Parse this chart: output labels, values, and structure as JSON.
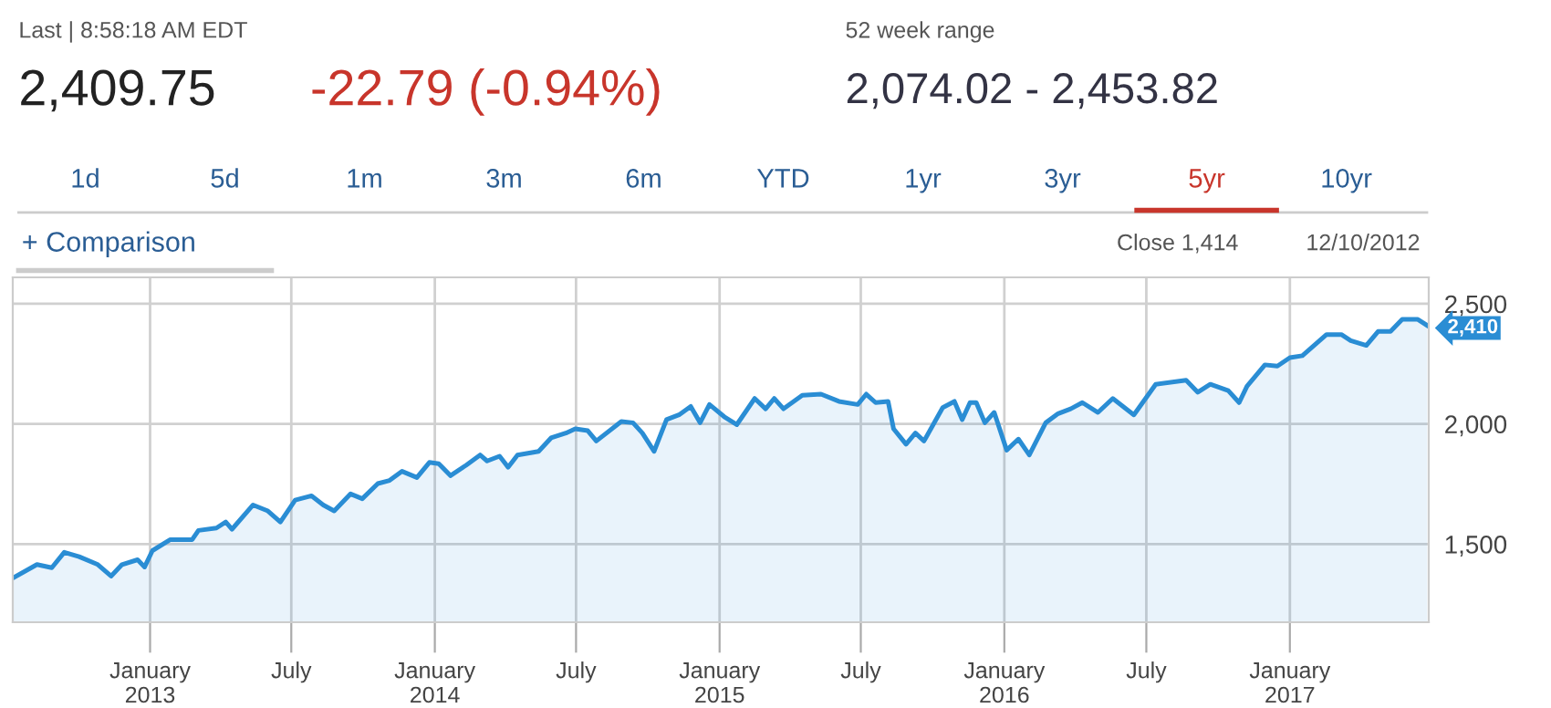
{
  "chart_data": {
    "type": "area",
    "annotations": [
      "Last | 8:58:18 AM EDT",
      "2,409.75",
      "-22.79 (-0.94%)",
      "52 week range",
      "2,074.02 - 2,453.82",
      "1d",
      "5d",
      "1m",
      "3m",
      "6m",
      "YTD",
      "1yr",
      "3yr",
      "5yr",
      "10yr",
      "+ Comparison",
      "Close 1,414",
      "12/10/2012",
      {
        "text": "2,410",
        "x": "2017-06-26",
        "y": 2410
      }
    ],
    "series": [
      {
        "color": "#2a8dd4",
        "x": [
          "2012-07-09",
          "2012-08-09",
          "2012-08-28",
          "2012-09-13",
          "2012-10-02",
          "2012-10-26",
          "2012-11-12",
          "2012-11-26",
          "2012-12-16",
          "2012-12-25",
          "2013-01-04",
          "2013-01-27",
          "2013-02-24",
          "2013-03-04",
          "2013-03-27",
          "2013-04-08",
          "2013-04-16",
          "2013-05-13",
          "2013-06-01",
          "2013-06-17",
          "2013-07-06",
          "2013-07-27",
          "2013-08-11",
          "2013-08-25",
          "2013-09-15",
          "2013-09-30",
          "2013-10-20",
          "2013-11-04",
          "2013-11-20",
          "2013-12-09",
          "2013-12-25",
          "2014-01-06",
          "2014-01-21",
          "2014-02-10",
          "2014-02-28",
          "2014-03-09",
          "2014-03-25",
          "2014-04-05",
          "2014-04-17",
          "2014-05-14",
          "2014-05-30",
          "2014-06-18",
          "2014-06-30",
          "2014-07-16",
          "2014-07-27",
          "2014-08-28",
          "2014-09-12",
          "2014-09-24",
          "2014-10-09",
          "2014-10-25",
          "2014-11-10",
          "2014-11-25",
          "2014-12-07",
          "2014-12-19",
          "2015-01-07",
          "2015-01-23",
          "2015-02-15",
          "2015-03-01",
          "2015-03-12",
          "2015-03-24",
          "2015-04-17",
          "2015-05-11",
          "2015-06-03",
          "2015-06-27",
          "2015-07-08",
          "2015-07-20",
          "2015-08-05",
          "2015-08-12",
          "2015-08-28",
          "2015-09-09",
          "2015-09-20",
          "2015-10-14",
          "2015-10-29",
          "2015-11-08",
          "2015-11-18",
          "2015-11-26",
          "2015-12-07",
          "2015-12-19",
          "2016-01-04",
          "2016-01-19",
          "2016-02-02",
          "2016-02-23",
          "2016-03-10",
          "2016-03-26",
          "2016-04-10",
          "2016-04-30",
          "2016-05-19",
          "2016-06-15",
          "2016-07-13",
          "2016-08-21",
          "2016-09-05",
          "2016-09-21",
          "2016-10-14",
          "2016-10-28",
          "2016-11-07",
          "2016-11-30",
          "2016-12-16",
          "2017-01-01",
          "2017-01-17",
          "2017-02-17",
          "2017-03-08",
          "2017-03-20",
          "2017-04-09",
          "2017-04-24",
          "2017-05-10",
          "2017-05-25",
          "2017-06-14",
          "2017-06-26"
        ],
        "values": [
          1359,
          1415,
          1402,
          1466,
          1448,
          1415,
          1367,
          1415,
          1435,
          1405,
          1473,
          1519,
          1519,
          1557,
          1567,
          1592,
          1562,
          1663,
          1638,
          1592,
          1683,
          1701,
          1663,
          1638,
          1709,
          1689,
          1752,
          1765,
          1803,
          1777,
          1840,
          1835,
          1785,
          1828,
          1871,
          1846,
          1866,
          1820,
          1871,
          1886,
          1942,
          1962,
          1980,
          1972,
          1929,
          2010,
          2005,
          1962,
          1886,
          2018,
          2038,
          2073,
          2005,
          2081,
          2030,
          1997,
          2106,
          2063,
          2106,
          2063,
          2119,
          2124,
          2094,
          2081,
          2124,
          2089,
          2094,
          1980,
          1916,
          1962,
          1929,
          2068,
          2094,
          2018,
          2089,
          2089,
          2005,
          2048,
          1891,
          1937,
          1871,
          2005,
          2043,
          2063,
          2089,
          2048,
          2106,
          2038,
          2165,
          2182,
          2132,
          2165,
          2139,
          2089,
          2157,
          2246,
          2241,
          2276,
          2284,
          2372,
          2372,
          2347,
          2327,
          2385,
          2385,
          2435,
          2435,
          2410
        ]
      }
    ],
    "xlim": [
      "2012-07-09",
      "2017-06-28"
    ],
    "xticks": [
      {
        "value": "2013-01-01",
        "label": "January\n2013"
      },
      {
        "value": "2013-07-01",
        "label": "July"
      },
      {
        "value": "2014-01-01",
        "label": "January\n2014"
      },
      {
        "value": "2014-07-01",
        "label": "July"
      },
      {
        "value": "2015-01-01",
        "label": "January\n2015"
      },
      {
        "value": "2015-07-01",
        "label": "July"
      },
      {
        "value": "2016-01-01",
        "label": "January\n2016"
      },
      {
        "value": "2016-07-01",
        "label": "July"
      },
      {
        "value": "2017-01-01",
        "label": "January\n2017"
      }
    ],
    "ylim": [
      1175,
      2610
    ],
    "yticks": [
      {
        "value": 1500,
        "label": "1,500"
      },
      {
        "value": 2000,
        "label": "2,000"
      },
      {
        "value": 2500,
        "label": "2,500"
      }
    ],
    "grid": true,
    "legend": false
  }
}
